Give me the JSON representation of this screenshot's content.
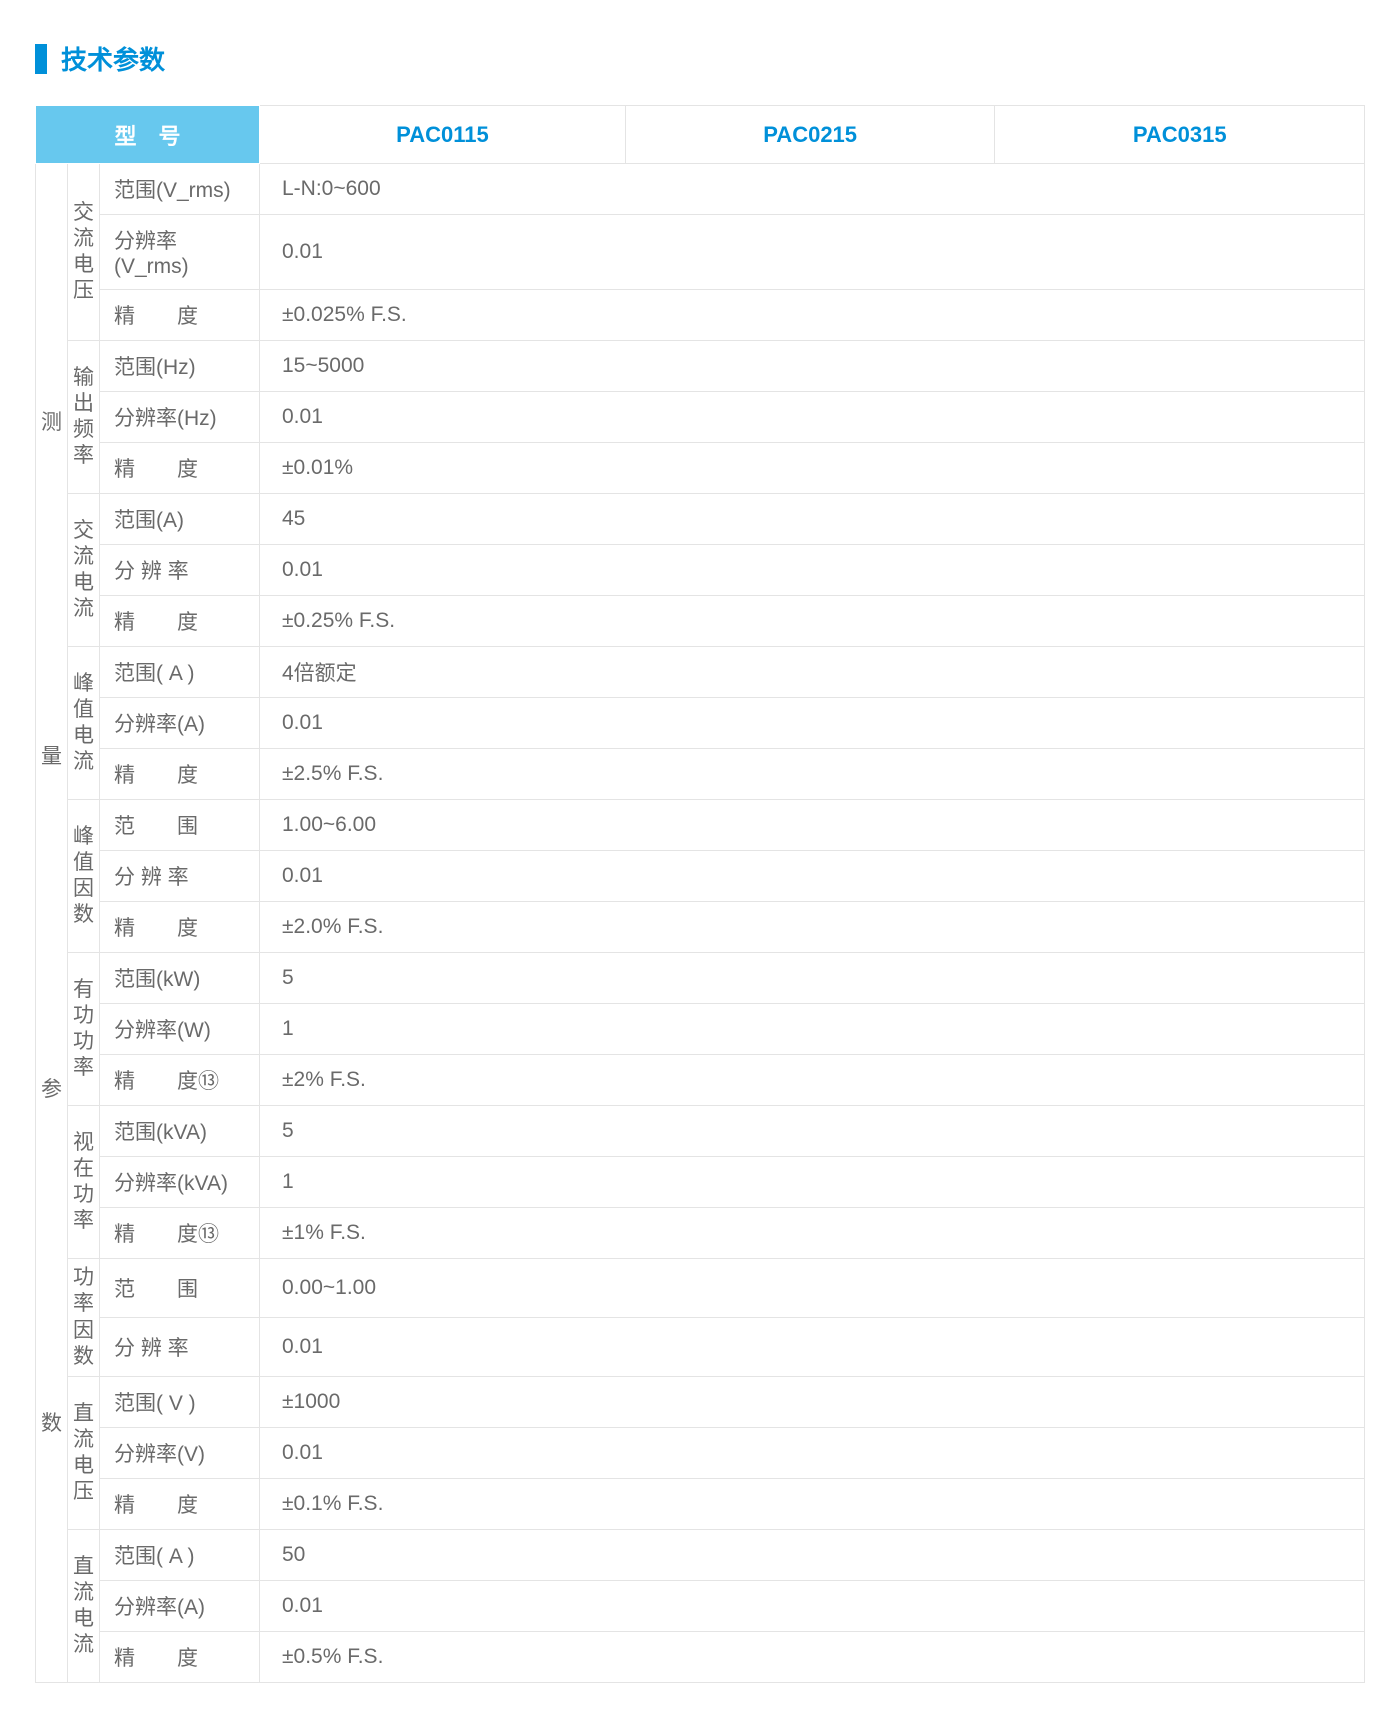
{
  "title_color": "#0090d9",
  "header_bg": "#67c8ee",
  "border_color": "#e4e4e4",
  "text_color": "#6a6a6a",
  "section_title": "技术参数",
  "header": {
    "model_label": "型　号",
    "models": [
      "PAC0115",
      "PAC0215",
      "PAC0315"
    ]
  },
  "main_group": "测量参数",
  "groups": [
    {
      "name": "交流电压",
      "rows": [
        {
          "label": "范围(V_rms)",
          "value": "L-N:0~600"
        },
        {
          "label": "分辨率(V_rms)",
          "value": "0.01"
        },
        {
          "label": "精　　度",
          "value": "±0.025% F.S."
        }
      ]
    },
    {
      "name": "输出频率",
      "rows": [
        {
          "label": "范围(Hz)",
          "value": "15~5000"
        },
        {
          "label": "分辨率(Hz)",
          "value": "0.01"
        },
        {
          "label": "精　　度",
          "value": "±0.01%"
        }
      ]
    },
    {
      "name": "交流电流",
      "rows": [
        {
          "label": "范围(A)",
          "value": "45"
        },
        {
          "label": "分 辨 率",
          "value": "0.01"
        },
        {
          "label": "精　　度",
          "value": "±0.25% F.S."
        }
      ]
    },
    {
      "name": "峰值电流",
      "rows": [
        {
          "label": "范围( A )",
          "value": "4倍额定"
        },
        {
          "label": "分辨率(A)",
          "value": "0.01"
        },
        {
          "label": "精　　度",
          "value": "±2.5% F.S."
        }
      ]
    },
    {
      "name": "峰值因数",
      "rows": [
        {
          "label": "范　　围",
          "value": "1.00~6.00"
        },
        {
          "label": "分 辨 率",
          "value": "0.01"
        },
        {
          "label": "精　　度",
          "value": "±2.0% F.S."
        }
      ]
    },
    {
      "name": "有功功率",
      "rows": [
        {
          "label": "范围(kW)",
          "value": "5"
        },
        {
          "label": "分辨率(W)",
          "value": "1"
        },
        {
          "label": "精　　度⑬",
          "value": "±2% F.S."
        }
      ]
    },
    {
      "name": "视在功率",
      "rows": [
        {
          "label": "范围(kVA)",
          "value": "5"
        },
        {
          "label": "分辨率(kVA)",
          "value": "1"
        },
        {
          "label": "精　　度⑬",
          "value": "±1% F.S."
        }
      ]
    },
    {
      "name": "功率因数",
      "rows": [
        {
          "label": "范　　围",
          "value": "0.00~1.00"
        },
        {
          "label": "分 辨 率",
          "value": "0.01"
        }
      ]
    },
    {
      "name": "直流电压",
      "rows": [
        {
          "label": "范围( V )",
          "value": "±1000"
        },
        {
          "label": "分辨率(V)",
          "value": "0.01"
        },
        {
          "label": "精　　度",
          "value": "±0.1% F.S."
        }
      ]
    },
    {
      "name": "直流电流",
      "rows": [
        {
          "label": "范围( A )",
          "value": "50"
        },
        {
          "label": "分辨率(A)",
          "value": "0.01"
        },
        {
          "label": "精　　度",
          "value": "±0.5% F.S."
        }
      ]
    }
  ]
}
